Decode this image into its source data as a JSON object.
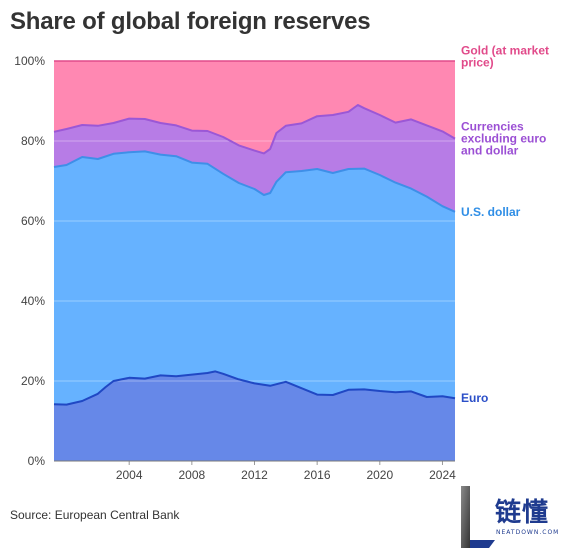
{
  "title": "Share of global foreign reserves",
  "source": "Source: European Central Bank",
  "logo": {
    "text": "链懂",
    "subtext": "NEATDOWN.COM"
  },
  "colors": {
    "gold": "#ff88b2",
    "currencies": "#b77ce6",
    "usd": "#66b2ff",
    "euro": "#6688e8",
    "gold_label": "#e14a8a",
    "currencies_label": "#9b4fd4",
    "usd_label": "#2f8ee6",
    "euro_label": "#2b4fc8",
    "currencies_line": "#9b57d6",
    "usd_line": "#3e8fe8",
    "euro_line": "#2048c4"
  },
  "chart_data": {
    "type": "area",
    "title": "Share of global foreign reserves",
    "x_ticks": [
      "2004",
      "2008",
      "2012",
      "2016",
      "2020",
      "2024"
    ],
    "y_ticks": [
      "0%",
      "20%",
      "40%",
      "60%",
      "80%",
      "100%"
    ],
    "xlim": [
      1999.2,
      2024.8
    ],
    "ylim": [
      0,
      100
    ],
    "grid": true,
    "legend_placement": "right",
    "series": [
      {
        "name": "Euro",
        "color_key": "euro",
        "label_color_key": "euro_label",
        "line_color_key": "euro_line",
        "points": [
          [
            1999.2,
            14.2
          ],
          [
            2000.0,
            14.1
          ],
          [
            2001.0,
            15.0
          ],
          [
            2002.0,
            16.8
          ],
          [
            2002.5,
            18.5
          ],
          [
            2003.0,
            20.0
          ],
          [
            2004.0,
            20.8
          ],
          [
            2005.0,
            20.6
          ],
          [
            2006.0,
            21.4
          ],
          [
            2007.0,
            21.2
          ],
          [
            2008.0,
            21.6
          ],
          [
            2009.0,
            22.0
          ],
          [
            2009.5,
            22.4
          ],
          [
            2010.0,
            21.8
          ],
          [
            2011.0,
            20.4
          ],
          [
            2012.0,
            19.4
          ],
          [
            2013.0,
            18.8
          ],
          [
            2014.0,
            19.8
          ],
          [
            2015.0,
            18.2
          ],
          [
            2016.0,
            16.6
          ],
          [
            2017.0,
            16.5
          ],
          [
            2018.0,
            17.8
          ],
          [
            2019.0,
            17.9
          ],
          [
            2020.0,
            17.5
          ],
          [
            2021.0,
            17.2
          ],
          [
            2022.0,
            17.4
          ],
          [
            2023.0,
            16.0
          ],
          [
            2024.0,
            16.2
          ],
          [
            2024.8,
            15.7
          ]
        ],
        "label_lines": [
          "Euro"
        ],
        "label_anchor": 15.7
      },
      {
        "name": "U.S. dollar",
        "color_key": "usd",
        "label_color_key": "usd_label",
        "line_color_key": "usd_line",
        "points": [
          [
            1999.2,
            73.5
          ],
          [
            2000.0,
            74.0
          ],
          [
            2001.0,
            76.0
          ],
          [
            2002.0,
            75.5
          ],
          [
            2003.0,
            76.8
          ],
          [
            2004.0,
            77.2
          ],
          [
            2005.0,
            77.4
          ],
          [
            2006.0,
            76.6
          ],
          [
            2007.0,
            76.2
          ],
          [
            2008.0,
            74.6
          ],
          [
            2009.0,
            74.3
          ],
          [
            2010.0,
            71.8
          ],
          [
            2011.0,
            69.5
          ],
          [
            2012.0,
            68.0
          ],
          [
            2012.6,
            66.5
          ],
          [
            2013.0,
            67.0
          ],
          [
            2013.4,
            69.8
          ],
          [
            2014.0,
            72.2
          ],
          [
            2015.0,
            72.5
          ],
          [
            2016.0,
            73.0
          ],
          [
            2017.0,
            72.0
          ],
          [
            2018.0,
            73.0
          ],
          [
            2019.0,
            73.1
          ],
          [
            2020.0,
            71.5
          ],
          [
            2021.0,
            69.6
          ],
          [
            2022.0,
            68.1
          ],
          [
            2023.0,
            66.1
          ],
          [
            2024.0,
            63.7
          ],
          [
            2024.8,
            62.3
          ]
        ],
        "label_lines": [
          "U.S. dollar"
        ],
        "label_anchor": 62.3
      },
      {
        "name": "Currencies excluding euro and dollar",
        "color_key": "currencies",
        "label_color_key": "currencies_label",
        "line_color_key": "currencies_line",
        "points": [
          [
            1999.2,
            82.3
          ],
          [
            2000.0,
            83.0
          ],
          [
            2001.0,
            84.0
          ],
          [
            2002.0,
            83.8
          ],
          [
            2003.0,
            84.5
          ],
          [
            2004.0,
            85.6
          ],
          [
            2005.0,
            85.5
          ],
          [
            2006.0,
            84.5
          ],
          [
            2007.0,
            83.9
          ],
          [
            2008.0,
            82.6
          ],
          [
            2009.0,
            82.5
          ],
          [
            2010.0,
            81.0
          ],
          [
            2011.0,
            78.9
          ],
          [
            2012.0,
            77.6
          ],
          [
            2012.6,
            76.9
          ],
          [
            2013.0,
            78.0
          ],
          [
            2013.4,
            82.0
          ],
          [
            2014.0,
            83.8
          ],
          [
            2015.0,
            84.4
          ],
          [
            2016.0,
            86.2
          ],
          [
            2017.0,
            86.5
          ],
          [
            2018.0,
            87.3
          ],
          [
            2018.6,
            89.0
          ],
          [
            2019.0,
            88.2
          ],
          [
            2020.0,
            86.5
          ],
          [
            2021.0,
            84.6
          ],
          [
            2022.0,
            85.4
          ],
          [
            2023.0,
            83.9
          ],
          [
            2024.0,
            82.4
          ],
          [
            2024.8,
            80.6
          ]
        ],
        "label_lines": [
          "Currencies",
          "excluding euro",
          "and dollar"
        ],
        "label_anchor": 80.6
      },
      {
        "name": "Gold (at market price)",
        "color_key": "gold",
        "label_color_key": "gold_label",
        "line_color_key": "gold",
        "points": [
          [
            1999.2,
            100
          ],
          [
            2024.8,
            100
          ]
        ],
        "label_lines": [
          "Gold (at market",
          "price)"
        ],
        "label_anchor": 99.6
      }
    ]
  }
}
